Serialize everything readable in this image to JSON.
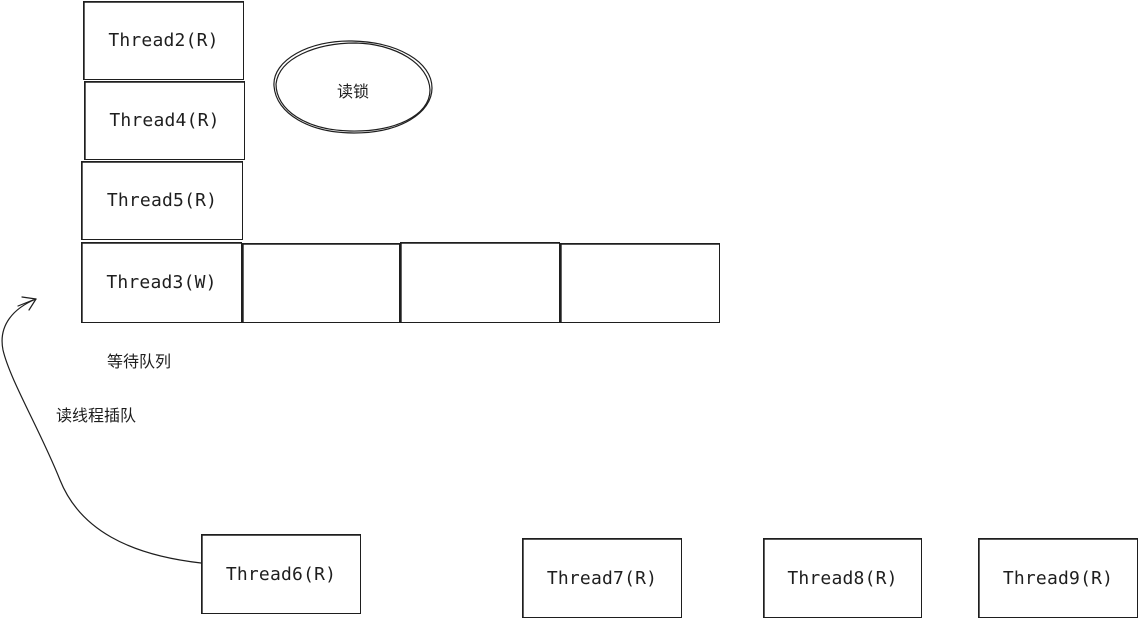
{
  "queue_stack": {
    "thread2": "Thread2(R)",
    "thread4": "Thread4(R)",
    "thread5": "Thread5(R)",
    "thread3": "Thread3(W)"
  },
  "read_lock": {
    "label": "读锁"
  },
  "wait_queue_label": "等待队列",
  "cut_in_label": "读线程插队",
  "incoming_threads": {
    "thread6": "Thread6(R)",
    "thread7": "Thread7(R)",
    "thread8": "Thread8(R)",
    "thread9": "Thread9(R)"
  },
  "colors": {
    "stroke": "#1e1e1e",
    "background": "#ffffff"
  }
}
